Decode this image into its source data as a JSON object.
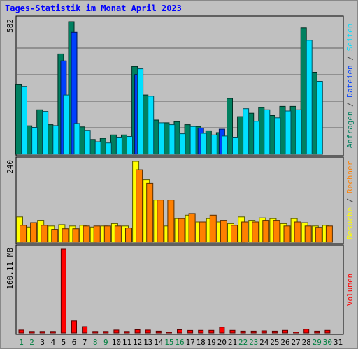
{
  "page": {
    "title": "Tages-Statistik im Monat April 2023",
    "background": "#c0c0c0"
  },
  "chart_data": {
    "type": "bar",
    "title": "Tages-Statistik im Monat April 2023",
    "days": [
      1,
      2,
      3,
      4,
      5,
      6,
      7,
      8,
      9,
      10,
      11,
      12,
      13,
      14,
      15,
      16,
      17,
      18,
      19,
      20,
      21,
      22,
      23,
      24,
      25,
      26,
      27,
      28,
      29,
      30,
      31
    ],
    "weekend_days": [
      1,
      2,
      8,
      9,
      15,
      16,
      22,
      23,
      29,
      30
    ],
    "colors": {
      "anfragen": "#008060",
      "dateien": "#0040ff",
      "seiten": "#00e0ff",
      "besuche": "#ffff00",
      "rechner": "#ff8000",
      "volumen": "#ff0000",
      "weekend_label": "#008040",
      "weekday_label": "#000000"
    },
    "panels": [
      {
        "id": "requests",
        "ymax_label": "582",
        "ymax": 582,
        "series": [
          {
            "name": "Anfragen",
            "color": "#008060",
            "values": [
              305,
              125,
              195,
              130,
              440,
              582,
              120,
              65,
              70,
              85,
              85,
              385,
              260,
              150,
              138,
              143,
              130,
              122,
              103,
              95,
              245,
              165,
              180,
              205,
              170,
              210,
              210,
              555,
              360,
              0,
              0
            ]
          },
          {
            "name": "Dateien",
            "color": "#0040ff",
            "values": [
              0,
              0,
              0,
              0,
              410,
              535,
              0,
              0,
              0,
              0,
              0,
              350,
              0,
              0,
              0,
              0,
              0,
              115,
              0,
              110,
              0,
              0,
              0,
              0,
              0,
              0,
              0,
              0,
              0,
              0,
              0
            ]
          },
          {
            "name": "Seiten",
            "color": "#00e0ff",
            "values": [
              298,
              118,
              188,
              126,
              260,
              135,
              105,
              55,
              50,
              75,
              78,
              375,
              255,
              138,
              130,
              90,
              122,
              92,
              85,
              80,
              75,
              200,
              145,
              195,
              160,
              190,
              195,
              500,
              320,
              0,
              0
            ]
          }
        ],
        "right_label": [
          {
            "text": "Anfragen",
            "color": "#008060"
          },
          {
            "text": "Dateien",
            "color": "#0040ff"
          },
          {
            "text": "Seiten",
            "color": "#00e0ff"
          }
        ]
      },
      {
        "id": "visits",
        "ymax_label": "240",
        "ymax": 240,
        "series": [
          {
            "name": "Besuche",
            "color": "#ffff00",
            "values": [
              75,
              45,
              65,
              48,
              52,
              48,
              50,
              45,
              48,
              55,
              48,
              240,
              185,
              125,
              48,
              70,
              80,
              60,
              70,
              60,
              55,
              75,
              65,
              72,
              70,
              55,
              70,
              58,
              48,
              50,
              0
            ]
          },
          {
            "name": "Rechner",
            "color": "#ff8000",
            "values": [
              50,
              58,
              50,
              38,
              40,
              40,
              48,
              48,
              48,
              48,
              42,
              215,
              175,
              125,
              125,
              70,
              85,
              60,
              80,
              65,
              50,
              60,
              60,
              65,
              65,
              48,
              60,
              48,
              44,
              48,
              0
            ]
          }
        ],
        "right_label": [
          {
            "text": "Besuche",
            "color": "#ffff00"
          },
          {
            "text": "Rechner",
            "color": "#ff8000"
          }
        ]
      },
      {
        "id": "volume",
        "ymax_label": "160.11 MB",
        "ymax": 160.11,
        "series": [
          {
            "name": "Volumen",
            "color": "#ff0000",
            "values": [
              5.5,
              3.0,
              3.0,
              3.0,
              160.11,
              23.0,
              12.0,
              3.0,
              3.0,
              5.5,
              3.0,
              6.0,
              5.5,
              3.5,
              1.8,
              6.0,
              4.8,
              5.0,
              5.0,
              11.0,
              5.0,
              3.5,
              3.5,
              4.0,
              3.5,
              5.0,
              2.0,
              7.0,
              3.5,
              5.0,
              0
            ]
          }
        ],
        "right_label": [
          {
            "text": "Volumen",
            "color": "#ff0000"
          }
        ]
      }
    ]
  }
}
